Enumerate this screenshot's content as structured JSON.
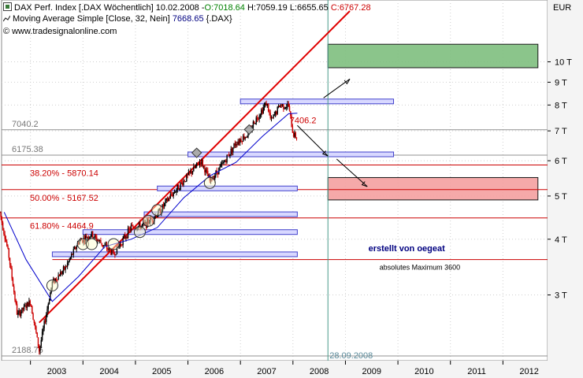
{
  "header": {
    "line1": {
      "name": "DAX Perf. Index [.DAX Wöchentlich]",
      "date": "10.02.2008",
      "open": "O:7018.64",
      "high": "H:7059.19",
      "low": "L:6655.65",
      "close": "C:6767.28"
    },
    "line2": {
      "indicator": "Moving Average Simple [Close, 32, Nein]",
      "value": "7668.65",
      "symbol": "{.DAX}"
    },
    "line3": {
      "copyright": "©",
      "site": "www.tradesignalonline.com"
    }
  },
  "colors": {
    "candle_up": "#000000",
    "candle_down": "#cc0000",
    "ma_line": "#0000cc",
    "trendline": "#e00000",
    "fib_line": "#cc0000",
    "support_band": "#8888ff",
    "target_green": "#7fbf7f",
    "target_red": "#f4a0a0",
    "grid": "#cfcfcf",
    "marker_line": "#4a9a8a"
  },
  "chart_data": {
    "type": "candlestick",
    "title": "",
    "scale": "log",
    "currency_label": "EUR",
    "ylim": [
      2188.75,
      13000
    ],
    "xlim": [
      "2002-06",
      "2012-12"
    ],
    "x_ticks": [
      "2003",
      "2004",
      "2005",
      "2006",
      "2007",
      "2008",
      "2009",
      "2010",
      "2011",
      "2012"
    ],
    "y_ticks": [
      {
        "value": 3000,
        "label": "3 T"
      },
      {
        "value": 4000,
        "label": "4 T"
      },
      {
        "value": 5000,
        "label": "5 T"
      },
      {
        "value": 6000,
        "label": "6 T"
      },
      {
        "value": 7000,
        "label": "7 T"
      },
      {
        "value": 8000,
        "label": "8 T"
      },
      {
        "value": 9000,
        "label": "9 T"
      },
      {
        "value": 10000,
        "label": "10 T"
      }
    ],
    "price_path": [
      [
        "2002-06",
        4600
      ],
      [
        "2002-08",
        3700
      ],
      [
        "2002-10",
        2700
      ],
      [
        "2003-01",
        2900
      ],
      [
        "2003-03",
        2250
      ],
      [
        "2003-06",
        3200
      ],
      [
        "2003-09",
        3450
      ],
      [
        "2003-12",
        3950
      ],
      [
        "2004-03",
        4100
      ],
      [
        "2004-08",
        3700
      ],
      [
        "2004-12",
        4250
      ],
      [
        "2005-03",
        4300
      ],
      [
        "2005-06",
        4550
      ],
      [
        "2005-09",
        5000
      ],
      [
        "2005-12",
        5400
      ],
      [
        "2006-04",
        6000
      ],
      [
        "2006-06",
        5400
      ],
      [
        "2006-09",
        5900
      ],
      [
        "2006-12",
        6600
      ],
      [
        "2007-03",
        6900
      ],
      [
        "2007-04",
        7300
      ],
      [
        "2007-07",
        8100
      ],
      [
        "2007-08",
        7350
      ],
      [
        "2007-10",
        8000
      ],
      [
        "2007-12",
        7950
      ],
      [
        "2008-01",
        6900
      ],
      [
        "2008-02",
        6767
      ]
    ],
    "moving_average": {
      "name": "Moving Average Simple [Close, 32, Nein]",
      "points": [
        [
          "2002-07",
          4600
        ],
        [
          "2002-12",
          3600
        ],
        [
          "2003-06",
          2900
        ],
        [
          "2003-12",
          3300
        ],
        [
          "2004-06",
          3850
        ],
        [
          "2004-12",
          4000
        ],
        [
          "2005-06",
          4250
        ],
        [
          "2005-12",
          4950
        ],
        [
          "2006-06",
          5550
        ],
        [
          "2006-12",
          5950
        ],
        [
          "2007-06",
          6800
        ],
        [
          "2007-12",
          7650
        ],
        [
          "2008-02",
          7668.65
        ]
      ]
    },
    "trendline": {
      "from": [
        "2003-03",
        2600
      ],
      "to": [
        "2009-02",
        13000
      ]
    },
    "horizontal_levels": [
      {
        "label": "7040.2",
        "value": 7040.2
      },
      {
        "label": "6175.38",
        "value": 6175.38
      },
      {
        "label": "38.20% - 5870.14",
        "value": 5870.14
      },
      {
        "label": "50.00% - 5167.52",
        "value": 5167.52
      },
      {
        "label": "61.80% - 4464.9",
        "value": 4464.9
      },
      {
        "label": "2188.75",
        "value": 2188.75
      },
      {
        "label": "absolutes Maximum 3600",
        "value": 3600
      }
    ],
    "support_bands": [
      {
        "from": "2007-01",
        "to": "2009-12",
        "value": 8150
      },
      {
        "from": "2006-01",
        "to": "2009-12",
        "value": 6200
      },
      {
        "from": "2005-06",
        "to": "2008-02",
        "value": 5200
      },
      {
        "from": "2005-03",
        "to": "2008-02",
        "value": 4550
      },
      {
        "from": "2004-01",
        "to": "2008-02",
        "value": 4150
      },
      {
        "from": "2003-06",
        "to": "2008-02",
        "value": 3700
      }
    ],
    "target_boxes": [
      {
        "color": "green",
        "from": "2008-09",
        "to": "2012-09",
        "low": 9700,
        "high": 10950
      },
      {
        "color": "red",
        "from": "2008-09",
        "to": "2012-09",
        "low": 4900,
        "high": 5500
      }
    ],
    "annotations": [
      {
        "text": "7406.2",
        "x": "2008-01",
        "y": 7406.2
      },
      {
        "text": "28.09.2008",
        "x": "2008-09",
        "y": 2188.75
      },
      {
        "text": "erstellt von oegeat",
        "x": "2010-03",
        "y": 4000
      }
    ],
    "vertical_marker": {
      "date": "28.09.2008",
      "x": "2008-09"
    }
  }
}
